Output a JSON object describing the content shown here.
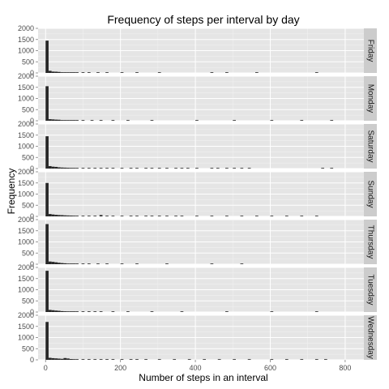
{
  "chart_data": {
    "type": "bar",
    "title": "Frequency of steps per interval by day",
    "xlabel": "Number of steps in an interval",
    "ylabel": "Frequency",
    "xlim": [
      -20,
      850
    ],
    "ylim": [
      0,
      2000
    ],
    "x_ticks": [
      0,
      200,
      400,
      600,
      800
    ],
    "y_ticks": [
      0,
      500,
      1000,
      1500,
      2000
    ],
    "bin_width": 8,
    "grid": true,
    "legend": "none",
    "bar_color": "#262626",
    "panel_bg": "#e5e5e5",
    "strip_bg": "#cccccc",
    "facets": [
      {
        "name": "Friday",
        "bins": [
          [
            0,
            1450
          ],
          [
            8,
            95
          ],
          [
            16,
            60
          ],
          [
            24,
            55
          ],
          [
            32,
            45
          ],
          [
            40,
            30
          ],
          [
            48,
            25
          ],
          [
            56,
            20
          ],
          [
            64,
            15
          ],
          [
            72,
            10
          ],
          [
            80,
            8
          ],
          [
            96,
            6
          ],
          [
            112,
            4
          ],
          [
            136,
            3
          ],
          [
            160,
            2
          ],
          [
            200,
            2
          ],
          [
            240,
            1
          ],
          [
            300,
            1
          ],
          [
            440,
            1
          ],
          [
            480,
            1
          ],
          [
            560,
            1
          ],
          [
            720,
            1
          ]
        ]
      },
      {
        "name": "Monday",
        "bins": [
          [
            0,
            1550
          ],
          [
            8,
            70
          ],
          [
            16,
            60
          ],
          [
            24,
            50
          ],
          [
            32,
            45
          ],
          [
            40,
            30
          ],
          [
            48,
            25
          ],
          [
            56,
            20
          ],
          [
            64,
            15
          ],
          [
            72,
            12
          ],
          [
            80,
            10
          ],
          [
            96,
            6
          ],
          [
            120,
            4
          ],
          [
            144,
            3
          ],
          [
            176,
            2
          ],
          [
            216,
            2
          ],
          [
            280,
            1
          ],
          [
            400,
            1
          ],
          [
            500,
            1
          ],
          [
            600,
            1
          ],
          [
            680,
            1
          ],
          [
            760,
            1
          ]
        ]
      },
      {
        "name": "Saturday",
        "bins": [
          [
            0,
            1450
          ],
          [
            8,
            110
          ],
          [
            16,
            85
          ],
          [
            24,
            75
          ],
          [
            32,
            55
          ],
          [
            40,
            45
          ],
          [
            48,
            40
          ],
          [
            56,
            35
          ],
          [
            64,
            30
          ],
          [
            72,
            25
          ],
          [
            80,
            20
          ],
          [
            96,
            15
          ],
          [
            112,
            12
          ],
          [
            128,
            10
          ],
          [
            144,
            8
          ],
          [
            160,
            8
          ],
          [
            176,
            6
          ],
          [
            200,
            5
          ],
          [
            224,
            4
          ],
          [
            240,
            4
          ],
          [
            264,
            3
          ],
          [
            280,
            3
          ],
          [
            300,
            3
          ],
          [
            320,
            2
          ],
          [
            344,
            2
          ],
          [
            360,
            2
          ],
          [
            376,
            2
          ],
          [
            400,
            2
          ],
          [
            440,
            2
          ],
          [
            456,
            2
          ],
          [
            480,
            2
          ],
          [
            500,
            2
          ],
          [
            520,
            2
          ],
          [
            540,
            2
          ],
          [
            736,
            2
          ],
          [
            760,
            2
          ]
        ]
      },
      {
        "name": "Sunday",
        "bins": [
          [
            0,
            1500
          ],
          [
            8,
            105
          ],
          [
            16,
            85
          ],
          [
            24,
            70
          ],
          [
            32,
            60
          ],
          [
            40,
            55
          ],
          [
            48,
            45
          ],
          [
            56,
            40
          ],
          [
            64,
            35
          ],
          [
            72,
            30
          ],
          [
            80,
            25
          ],
          [
            96,
            18
          ],
          [
            112,
            14
          ],
          [
            128,
            12
          ],
          [
            144,
            60
          ],
          [
            160,
            10
          ],
          [
            176,
            8
          ],
          [
            200,
            6
          ],
          [
            224,
            5
          ],
          [
            240,
            4
          ],
          [
            264,
            3
          ],
          [
            280,
            3
          ],
          [
            300,
            2
          ],
          [
            320,
            2
          ],
          [
            344,
            2
          ],
          [
            360,
            2
          ],
          [
            400,
            2
          ],
          [
            440,
            2
          ],
          [
            480,
            2
          ],
          [
            520,
            2
          ],
          [
            560,
            2
          ],
          [
            600,
            2
          ],
          [
            640,
            2
          ],
          [
            680,
            1
          ],
          [
            720,
            1
          ]
        ]
      },
      {
        "name": "Thursday",
        "bins": [
          [
            0,
            1800
          ],
          [
            8,
            120
          ],
          [
            16,
            105
          ],
          [
            24,
            85
          ],
          [
            32,
            65
          ],
          [
            40,
            50
          ],
          [
            48,
            40
          ],
          [
            56,
            30
          ],
          [
            64,
            20
          ],
          [
            72,
            15
          ],
          [
            80,
            10
          ],
          [
            96,
            8
          ],
          [
            112,
            6
          ],
          [
            136,
            4
          ],
          [
            160,
            3
          ],
          [
            200,
            2
          ],
          [
            240,
            1
          ],
          [
            320,
            1
          ],
          [
            440,
            1
          ],
          [
            520,
            1
          ]
        ]
      },
      {
        "name": "Tuesday",
        "bins": [
          [
            0,
            1850
          ],
          [
            8,
            95
          ],
          [
            16,
            80
          ],
          [
            24,
            65
          ],
          [
            32,
            55
          ],
          [
            40,
            40
          ],
          [
            48,
            32
          ],
          [
            56,
            25
          ],
          [
            64,
            20
          ],
          [
            72,
            15
          ],
          [
            80,
            12
          ],
          [
            96,
            8
          ],
          [
            112,
            6
          ],
          [
            128,
            4
          ],
          [
            144,
            3
          ],
          [
            176,
            2
          ],
          [
            216,
            2
          ],
          [
            280,
            1
          ],
          [
            360,
            1
          ],
          [
            480,
            1
          ],
          [
            600,
            1
          ],
          [
            720,
            1
          ]
        ]
      },
      {
        "name": "Wednesday",
        "bins": [
          [
            0,
            1700
          ],
          [
            8,
            90
          ],
          [
            16,
            75
          ],
          [
            24,
            65
          ],
          [
            32,
            55
          ],
          [
            40,
            45
          ],
          [
            48,
            80
          ],
          [
            56,
            60
          ],
          [
            64,
            35
          ],
          [
            72,
            25
          ],
          [
            80,
            18
          ],
          [
            96,
            12
          ],
          [
            112,
            8
          ],
          [
            128,
            6
          ],
          [
            144,
            4
          ],
          [
            160,
            3
          ],
          [
            176,
            3
          ],
          [
            200,
            3
          ],
          [
            224,
            2
          ],
          [
            240,
            2
          ],
          [
            264,
            2
          ],
          [
            300,
            2
          ],
          [
            340,
            2
          ],
          [
            380,
            2
          ],
          [
            420,
            2
          ],
          [
            460,
            2
          ],
          [
            500,
            2
          ],
          [
            540,
            2
          ],
          [
            600,
            2
          ],
          [
            640,
            2
          ],
          [
            680,
            2
          ],
          [
            720,
            2
          ],
          [
            744,
            2
          ]
        ]
      }
    ]
  }
}
